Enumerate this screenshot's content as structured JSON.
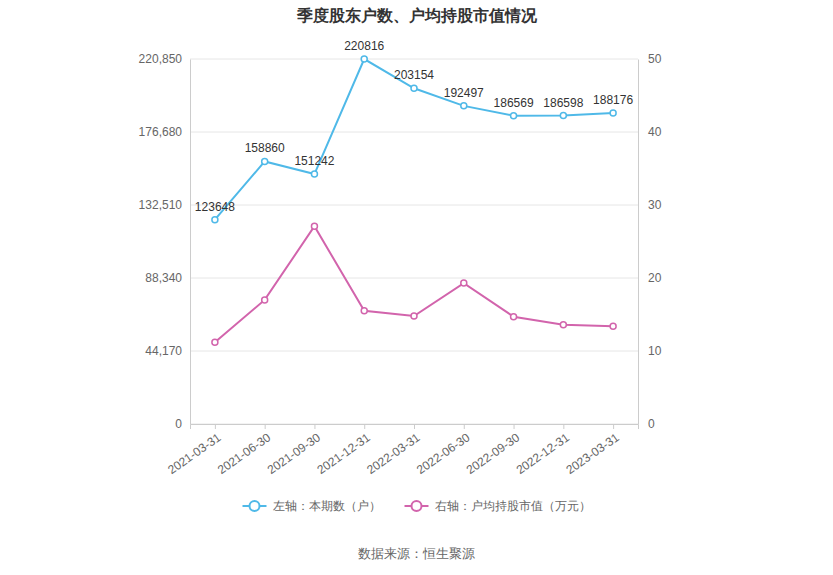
{
  "chart_data": {
    "type": "line",
    "title": "季度股东户数、户均持股市值情况",
    "categories": [
      "2021-03-31",
      "2021-06-30",
      "2021-09-30",
      "2021-12-31",
      "2022-03-31",
      "2022-06-30",
      "2022-09-30",
      "2022-12-31",
      "2023-03-31"
    ],
    "series": [
      {
        "name": "左轴：本期数（户）",
        "color": "#4fb9e8",
        "axis": "y",
        "marker": "circle",
        "line_style": "solid",
        "data_labels": true,
        "values": [
          123648,
          158860,
          151242,
          220816,
          203154,
          192497,
          186569,
          186598,
          188176
        ]
      },
      {
        "name": "右轴：户均持股市值（万元）",
        "color": "#d264ac",
        "axis": "y2",
        "marker": "circle",
        "line_style": "solid",
        "data_labels": false,
        "values": [
          11.2,
          17.0,
          27.1,
          15.5,
          14.8,
          19.3,
          14.7,
          13.6,
          13.4
        ]
      }
    ],
    "ylim": [
      0,
      220850
    ],
    "yticks": [
      0,
      {
        "value": 44170,
        "label": "44,170"
      },
      {
        "value": 88340,
        "label": "88,340"
      },
      {
        "value": 132510,
        "label": "132,510"
      },
      {
        "value": 176680,
        "label": "176,680"
      },
      {
        "value": 220850,
        "label": "220,850"
      }
    ],
    "y2lim": [
      0,
      50
    ],
    "y2ticks": [
      0,
      10,
      20,
      30,
      40,
      50
    ],
    "grid": true,
    "legend": "bottom",
    "source": "数据来源：恒生聚源"
  }
}
